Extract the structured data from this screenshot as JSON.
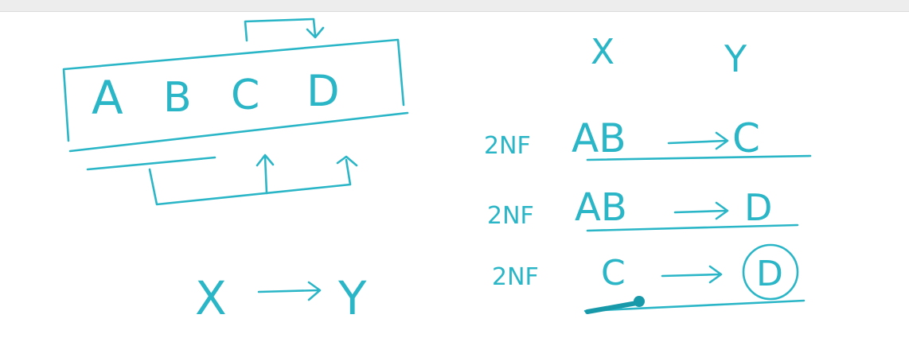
{
  "diagram": {
    "ink_color": "#2bb6c7",
    "relation": {
      "attributes": [
        "A",
        "B",
        "C",
        "D"
      ]
    },
    "dependency_general": {
      "lhs": "X",
      "rhs": "Y"
    },
    "column_headers": {
      "x": "X",
      "y": "Y"
    },
    "dependencies": [
      {
        "tag": "2NF",
        "lhs": "AB",
        "rhs": "C"
      },
      {
        "tag": "2NF",
        "lhs": "AB",
        "rhs": "D"
      },
      {
        "tag": "2NF",
        "lhs": "C",
        "rhs": "D"
      }
    ]
  }
}
